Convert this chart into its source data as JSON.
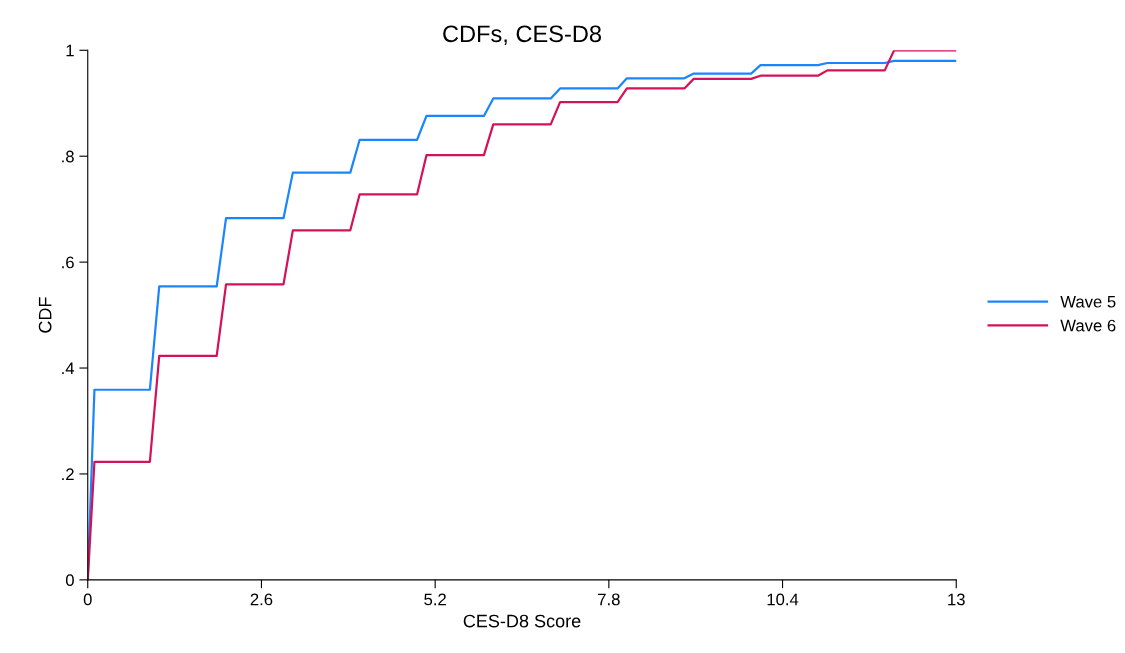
{
  "chart_data": {
    "type": "line",
    "title": "CDFs, CES-D8",
    "xlabel": "CES-D8 Score",
    "ylabel": "CDF",
    "x": [
      0,
      0.1,
      0.93,
      1.07,
      1.93,
      2.07,
      2.93,
      3.07,
      3.93,
      4.07,
      4.93,
      5.07,
      5.93,
      6.07,
      6.93,
      7.07,
      7.93,
      8.07,
      8.93,
      9.07,
      9.93,
      10.07,
      10.93,
      11.07,
      11.93,
      12.07,
      13
    ],
    "series": [
      {
        "name": "Wave 5",
        "color": "#1a85ff",
        "values": [
          0,
          0.359,
          0.359,
          0.554,
          0.554,
          0.683,
          0.683,
          0.769,
          0.769,
          0.831,
          0.831,
          0.876,
          0.876,
          0.909,
          0.909,
          0.928,
          0.928,
          0.947,
          0.947,
          0.956,
          0.956,
          0.972,
          0.972,
          0.976,
          0.976,
          0.98,
          0.98
        ]
      },
      {
        "name": "Wave 6",
        "color": "#d41159",
        "values": [
          0,
          0.223,
          0.223,
          0.423,
          0.423,
          0.558,
          0.558,
          0.66,
          0.66,
          0.728,
          0.728,
          0.802,
          0.802,
          0.86,
          0.86,
          0.902,
          0.902,
          0.928,
          0.928,
          0.946,
          0.946,
          0.952,
          0.952,
          0.962,
          0.962,
          1.0,
          1.0
        ]
      }
    ],
    "xlim": [
      0,
      13
    ],
    "xticks": [
      0,
      2.6,
      5.2,
      7.8,
      10.4,
      13
    ],
    "ylim": [
      0,
      1
    ],
    "yticks": [
      0,
      {
        "value": 0.2,
        "label": ".2"
      },
      {
        "value": 0.4,
        "label": ".4"
      },
      {
        "value": 0.6,
        "label": ".6"
      },
      {
        "value": 0.8,
        "label": ".8"
      },
      1
    ],
    "grid": false,
    "legend": "right",
    "marker": "none",
    "line_style": "solid"
  }
}
